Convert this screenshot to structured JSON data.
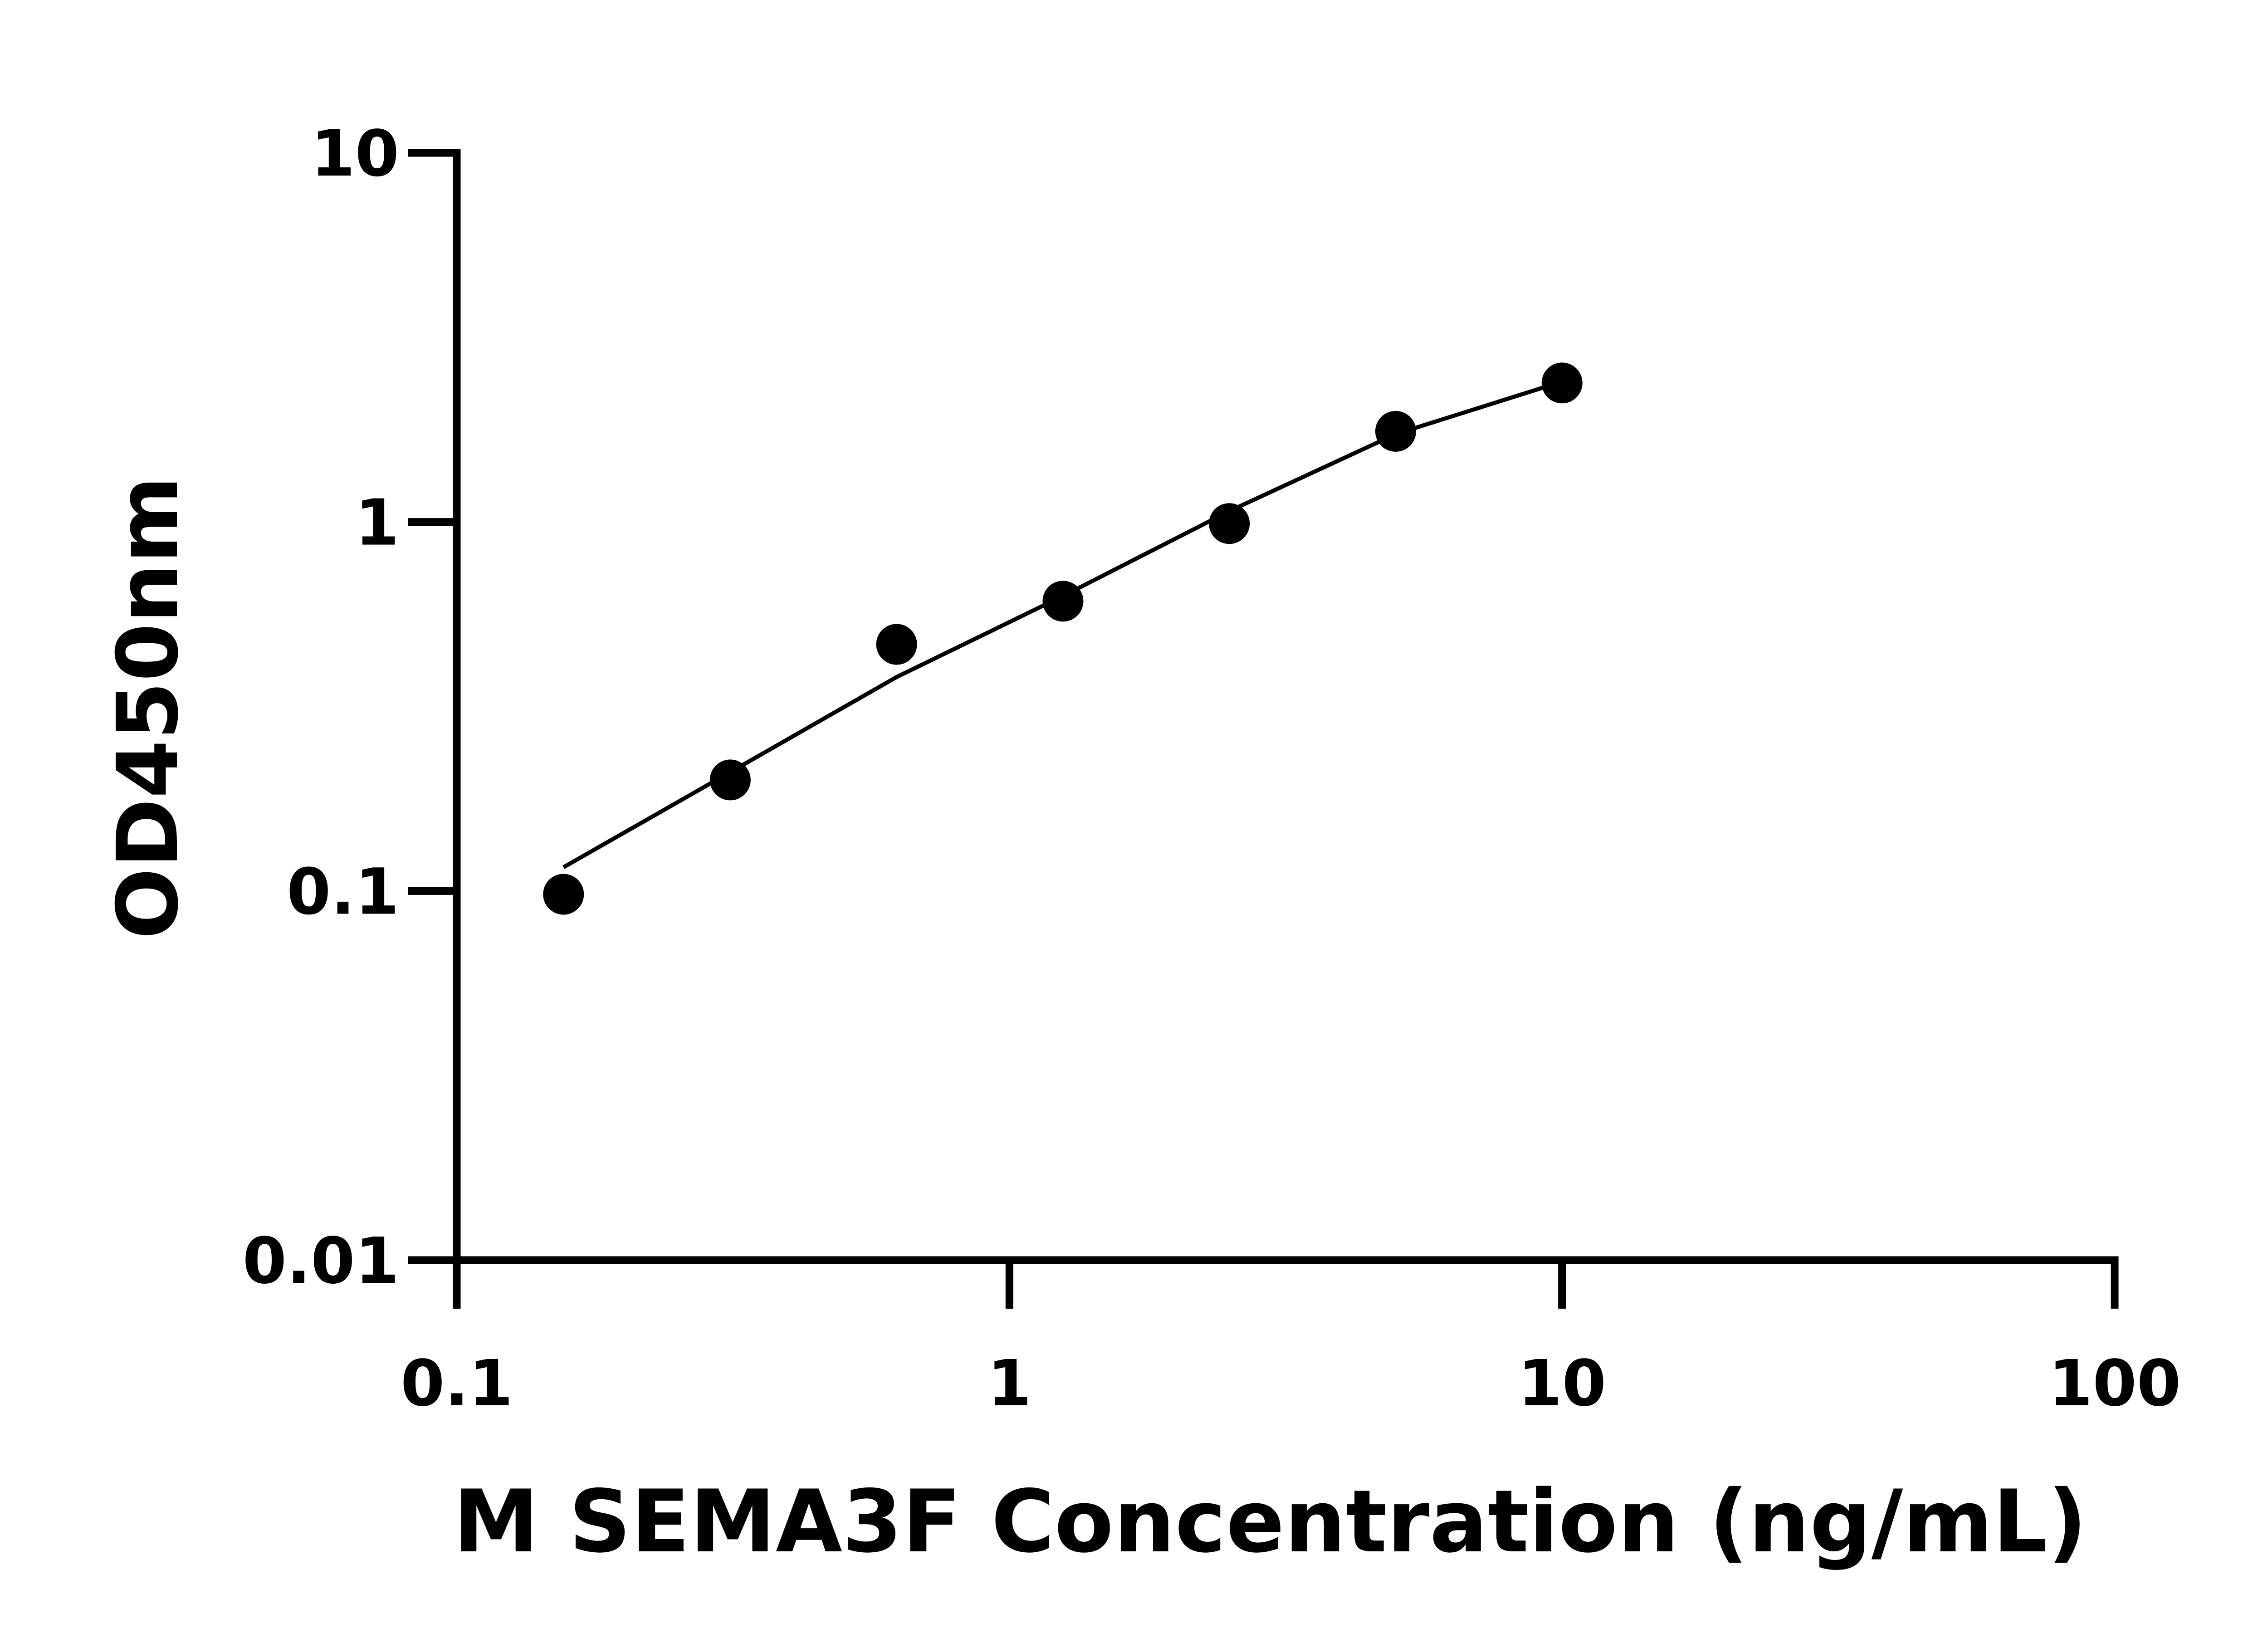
{
  "chart_data": {
    "type": "scatter",
    "xlabel": "M SEMA3F Concentration (ng/mL)",
    "ylabel": "OD450nm",
    "x": [
      0.156,
      0.3125,
      0.625,
      1.25,
      2.5,
      5,
      10
    ],
    "values": [
      0.098,
      0.2,
      0.466,
      0.61,
      0.99,
      1.76,
      2.38
    ],
    "color": "#000000",
    "curve": {
      "x": [
        0.156,
        0.3125,
        0.625,
        1.25,
        2.5,
        5,
        10
      ],
      "values": [
        0.116,
        0.21,
        0.38,
        0.63,
        1.07,
        1.73,
        2.4
      ]
    },
    "xscale": "log",
    "yscale": "log",
    "xlim": [
      0.1,
      100
    ],
    "ylim": [
      0.01,
      10
    ],
    "xticks": [
      0.1,
      1,
      10,
      100
    ],
    "yticks": [
      0.01,
      0.1,
      1,
      10
    ],
    "grid": false
  }
}
